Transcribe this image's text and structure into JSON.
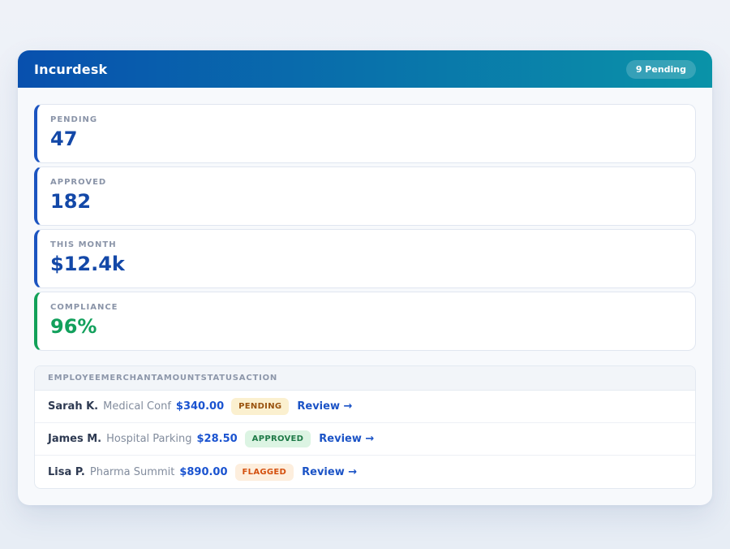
{
  "colors": {
    "page_bg": "#edf1f7",
    "card_bg": "#f7f9fc",
    "header_gradient_from": "#0850ae",
    "header_gradient_to": "#0a93a8",
    "accent_blue": "#1b54c0",
    "accent_green": "#12a158",
    "value_blue": "#1348a8",
    "value_green": "#12a05c",
    "amount_blue": "#1a53d0",
    "link_blue": "#1b53c6"
  },
  "header": {
    "title": "Incurdesk",
    "pending_badge": "9 Pending"
  },
  "stats": [
    {
      "label": "PENDING",
      "value": "47",
      "accent": "#1b54c0",
      "value_color": "#1348a8"
    },
    {
      "label": "APPROVED",
      "value": "182",
      "accent": "#1b54c0",
      "value_color": "#1348a8"
    },
    {
      "label": "THIS MONTH",
      "value": "$12.4k",
      "accent": "#1b54c0",
      "value_color": "#1348a8"
    },
    {
      "label": "COMPLIANCE",
      "value": "96%",
      "accent": "#12a158",
      "value_color": "#12a05c"
    }
  ],
  "table": {
    "columns": [
      "EMPLOYEE",
      "MERCHANT",
      "AMOUNT",
      "STATUS",
      "ACTION"
    ],
    "rows": [
      {
        "employee": "Sarah K.",
        "merchant": "Medical Conf",
        "amount": "$340.00",
        "status": "PENDING",
        "status_bg": "#fbf0cf",
        "status_color": "#99520d",
        "action": "Review →"
      },
      {
        "employee": "James M.",
        "merchant": "Hospital Parking",
        "amount": "$28.50",
        "status": "APPROVED",
        "status_bg": "#dcf4e3",
        "status_color": "#1e7a47",
        "action": "Review →"
      },
      {
        "employee": "Lisa P.",
        "merchant": "Pharma Summit",
        "amount": "$890.00",
        "status": "FLAGGED",
        "status_bg": "#fdeedd",
        "status_color": "#d4500f",
        "action": "Review →"
      }
    ]
  }
}
